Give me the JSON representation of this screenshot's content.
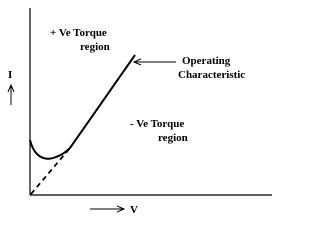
{
  "labels": {
    "positive_region": [
      "+ Ve Torque",
      "region"
    ],
    "operating": [
      "Operating",
      "Characteristic"
    ],
    "negative_region": [
      "- Ve Torque",
      "region"
    ],
    "y_axis": "I",
    "x_axis": "V"
  }
}
